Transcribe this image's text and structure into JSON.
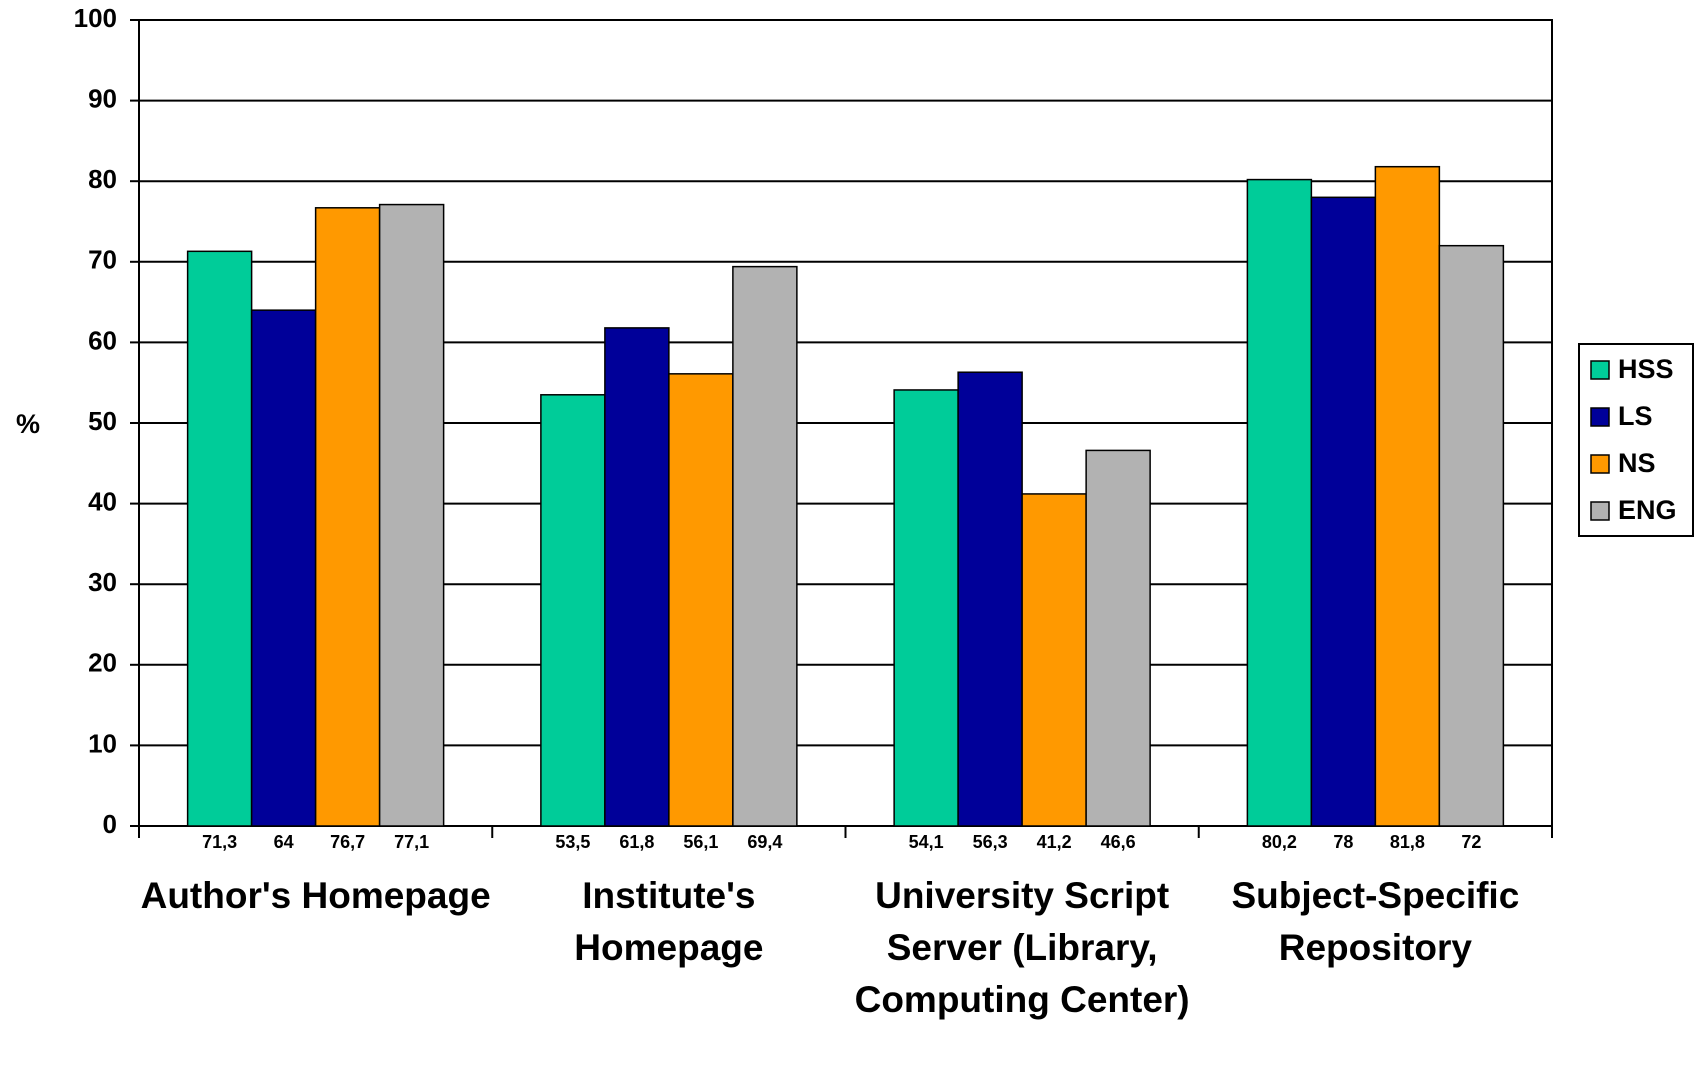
{
  "chart_data": {
    "type": "bar",
    "y_label": "%",
    "categories": [
      "Author's Homepage",
      "Institute's Homepage",
      "University Script Server (Library, Computing Center)",
      "Subject-Specific Repository"
    ],
    "series": [
      {
        "name": "HSS",
        "color": "#00cc99",
        "values": [
          71.3,
          53.5,
          54.1,
          80.2
        ],
        "value_labels": [
          "71,3",
          "53,5",
          "54,1",
          "80,2"
        ]
      },
      {
        "name": "LS",
        "color": "#000099",
        "values": [
          64,
          61.8,
          56.3,
          78
        ],
        "value_labels": [
          "64",
          "61,8",
          "56,3",
          "78"
        ]
      },
      {
        "name": "NS",
        "color": "#ff9900",
        "values": [
          76.7,
          56.1,
          41.2,
          81.8
        ],
        "value_labels": [
          "76,7",
          "56,1",
          "41,2",
          "81,8"
        ]
      },
      {
        "name": "ENG",
        "color": "#b2b2b2",
        "values": [
          77.1,
          69.4,
          46.6,
          72
        ],
        "value_labels": [
          "77,1",
          "69,4",
          "46,6",
          "72"
        ]
      }
    ],
    "ylim": [
      0,
      100
    ],
    "yticks": [
      0,
      10,
      20,
      30,
      40,
      50,
      60,
      70,
      80,
      90,
      100
    ],
    "grid": true,
    "legend": "right"
  }
}
